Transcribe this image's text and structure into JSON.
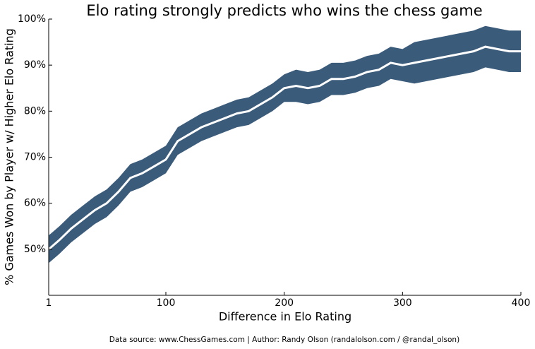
{
  "chart_data": {
    "type": "line",
    "title": "Elo rating strongly predicts who wins the chess game",
    "x_label": "Difference in Elo Rating",
    "y_label": "% Games Won by Player w/ Higher Elo Rating",
    "source": "Data source: www.ChessGames.com | Author: Randy Olson (randalolson.com / @randal_olson)",
    "x": [
      1,
      10,
      20,
      30,
      40,
      50,
      60,
      70,
      80,
      90,
      100,
      110,
      120,
      130,
      140,
      150,
      160,
      170,
      180,
      190,
      200,
      210,
      220,
      230,
      240,
      250,
      260,
      270,
      280,
      290,
      300,
      310,
      320,
      330,
      340,
      350,
      360,
      370,
      380,
      390,
      400
    ],
    "values": [
      50,
      52,
      54.5,
      56.5,
      58.5,
      60,
      62.5,
      65.5,
      66.5,
      68,
      69.5,
      73.5,
      75,
      76.5,
      77.5,
      78.5,
      79.5,
      80,
      81.5,
      83,
      85,
      85.5,
      85,
      85.5,
      87,
      87,
      87.5,
      88.5,
      89,
      90.5,
      90,
      90.5,
      91,
      91.5,
      92,
      92.5,
      93,
      94,
      93.5,
      93,
      93
    ],
    "lower": [
      47,
      49,
      51.5,
      53.5,
      55.5,
      57,
      59.5,
      62.5,
      63.5,
      65,
      66.5,
      70.5,
      72,
      73.5,
      74.5,
      75.5,
      76.5,
      77,
      78.5,
      80,
      82,
      82,
      81.5,
      82,
      83.5,
      83.5,
      84,
      85,
      85.5,
      87,
      86.5,
      86,
      86.5,
      87,
      87.5,
      88,
      88.5,
      89.5,
      89,
      88.5,
      88.5
    ],
    "upper": [
      53,
      55,
      57.5,
      59.5,
      61.5,
      63,
      65.5,
      68.5,
      69.5,
      71,
      72.5,
      76.5,
      78,
      79.5,
      80.5,
      81.5,
      82.5,
      83,
      84.5,
      86,
      88,
      89,
      88.5,
      89,
      90.5,
      90.5,
      91,
      92,
      92.5,
      94,
      93.5,
      95,
      95.5,
      96,
      96.5,
      97,
      97.5,
      98.5,
      98,
      97.5,
      97.5
    ],
    "color": "#ffffff",
    "band_color": "#3b5b7b",
    "xlim": [
      1,
      400
    ],
    "xticks": [
      1,
      100,
      200,
      300,
      400
    ],
    "ylim": [
      40,
      100
    ],
    "yticks": [
      {
        "value": 50,
        "label": "50%"
      },
      {
        "value": 60,
        "label": "60%"
      },
      {
        "value": 70,
        "label": "70%"
      },
      {
        "value": 80,
        "label": "80%"
      },
      {
        "value": 90,
        "label": "90%"
      },
      {
        "value": 100,
        "label": "100%"
      }
    ]
  }
}
